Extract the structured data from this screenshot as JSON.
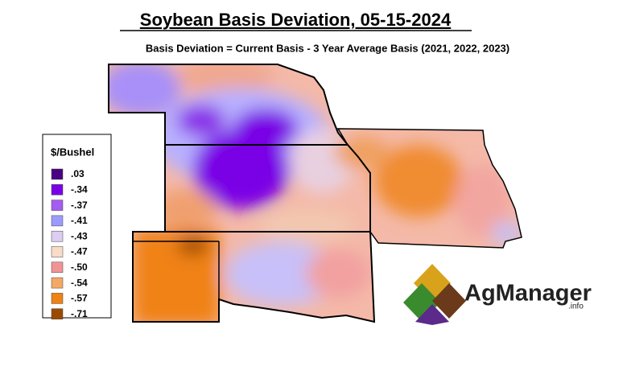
{
  "title": "Soybean Basis Deviation, 05-15-2024",
  "subtitle": "Basis Deviation = Current Basis - 3 Year Average Basis (2021, 2022, 2023)",
  "legend": {
    "title": "$/Bushel",
    "items": [
      {
        "label": ".03",
        "color": "#4b0082"
      },
      {
        "label": "-.34",
        "color": "#7a00e6"
      },
      {
        "label": "-.37",
        "color": "#a55cf0"
      },
      {
        "label": "-.41",
        "color": "#9b9bff"
      },
      {
        "label": "-.43",
        "color": "#dccdf2"
      },
      {
        "label": "-.47",
        "color": "#f8dcc8"
      },
      {
        "label": "-.50",
        "color": "#f29494"
      },
      {
        "label": "-.54",
        "color": "#f4a864"
      },
      {
        "label": "-.57",
        "color": "#f08214"
      },
      {
        "label": "-.71",
        "color": "#9c4a00"
      }
    ]
  },
  "logo": {
    "name": "AgManager",
    "suffix": ".info"
  }
}
